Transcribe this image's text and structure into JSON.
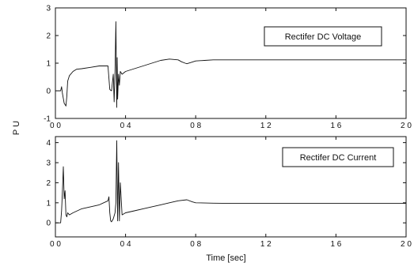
{
  "chart_data": [
    {
      "type": "line",
      "title": "",
      "xlabel": "",
      "ylabel": "",
      "legend": "Rectifer DC Voltage",
      "legend_position": "top-right",
      "xlim": [
        0,
        2.0
      ],
      "ylim": [
        -1,
        3
      ],
      "grid": false,
      "x_ticks": [
        "0 0",
        "0 4",
        "0 8",
        "1 2",
        "1 6",
        "2 0"
      ],
      "x_tick_values": [
        0,
        0.4,
        0.8,
        1.2,
        1.6,
        2.0
      ],
      "y_ticks": [
        "-1",
        "0",
        "1",
        "2",
        "3"
      ],
      "y_tick_values": [
        -1,
        0,
        1,
        2,
        3
      ],
      "series": [
        {
          "color": "#111111",
          "x": [
            0,
            0.03,
            0.035,
            0.04,
            0.05,
            0.06,
            0.065,
            0.07,
            0.08,
            0.1,
            0.12,
            0.15,
            0.2,
            0.25,
            0.3,
            0.31,
            0.315,
            0.32,
            0.33,
            0.335,
            0.34,
            0.345,
            0.35,
            0.352,
            0.355,
            0.36,
            0.365,
            0.37,
            0.38,
            0.4,
            0.45,
            0.5,
            0.55,
            0.6,
            0.65,
            0.7,
            0.72,
            0.74,
            0.75,
            0.77,
            0.8,
            0.85,
            0.9,
            1.0,
            1.2,
            1.4,
            1.6,
            1.8,
            2.0
          ],
          "y": [
            0,
            0,
            0.15,
            -0.1,
            -0.45,
            -0.55,
            -0.2,
            0.35,
            0.55,
            0.7,
            0.78,
            0.8,
            0.85,
            0.9,
            0.9,
            0.05,
            0.02,
            0.0,
            0.6,
            -0.4,
            0.7,
            2.5,
            -0.6,
            1.2,
            -0.3,
            0.6,
            0.2,
            0.7,
            0.6,
            0.7,
            0.8,
            0.9,
            1.0,
            1.1,
            1.15,
            1.12,
            1.05,
            1.0,
            0.98,
            1.02,
            1.08,
            1.1,
            1.12,
            1.12,
            1.12,
            1.12,
            1.12,
            1.12,
            1.12
          ]
        }
      ]
    },
    {
      "type": "line",
      "title": "",
      "xlabel": "Time [sec]",
      "ylabel": "P U",
      "legend": "Rectifer DC Current",
      "legend_position": "top-right",
      "xlim": [
        0,
        2.0
      ],
      "ylim": [
        -0.7,
        4.3
      ],
      "grid": false,
      "x_ticks": [
        "0 0",
        "0 4",
        "0 8",
        "1 2",
        "1 6",
        "2 0"
      ],
      "x_tick_values": [
        0,
        0.4,
        0.8,
        1.2,
        1.6,
        2.0
      ],
      "y_ticks": [
        "0",
        "1",
        "2",
        "3",
        "4"
      ],
      "y_tick_values": [
        0,
        1,
        2,
        3,
        4
      ],
      "series": [
        {
          "color": "#111111",
          "x": [
            0,
            0.03,
            0.035,
            0.04,
            0.045,
            0.05,
            0.055,
            0.06,
            0.065,
            0.07,
            0.08,
            0.1,
            0.15,
            0.2,
            0.25,
            0.3,
            0.305,
            0.31,
            0.315,
            0.32,
            0.33,
            0.34,
            0.345,
            0.35,
            0.355,
            0.36,
            0.365,
            0.37,
            0.38,
            0.4,
            0.45,
            0.5,
            0.55,
            0.6,
            0.65,
            0.7,
            0.75,
            0.78,
            0.8,
            0.9,
            1.0,
            1.2,
            1.4,
            1.6,
            1.8,
            2.0
          ],
          "y": [
            0,
            0,
            0.6,
            1.6,
            2.8,
            1.2,
            1.6,
            0.4,
            0.3,
            0.5,
            0.4,
            0.5,
            0.7,
            0.8,
            0.9,
            1.1,
            1.3,
            0.5,
            0.1,
            0.05,
            0.2,
            0.5,
            1.0,
            4.1,
            0.1,
            3.0,
            0.1,
            2.0,
            0.4,
            0.5,
            0.6,
            0.7,
            0.8,
            0.9,
            1.0,
            1.1,
            1.15,
            1.05,
            1.0,
            0.98,
            0.97,
            0.97,
            0.97,
            0.97,
            0.97,
            0.97
          ]
        }
      ]
    }
  ]
}
